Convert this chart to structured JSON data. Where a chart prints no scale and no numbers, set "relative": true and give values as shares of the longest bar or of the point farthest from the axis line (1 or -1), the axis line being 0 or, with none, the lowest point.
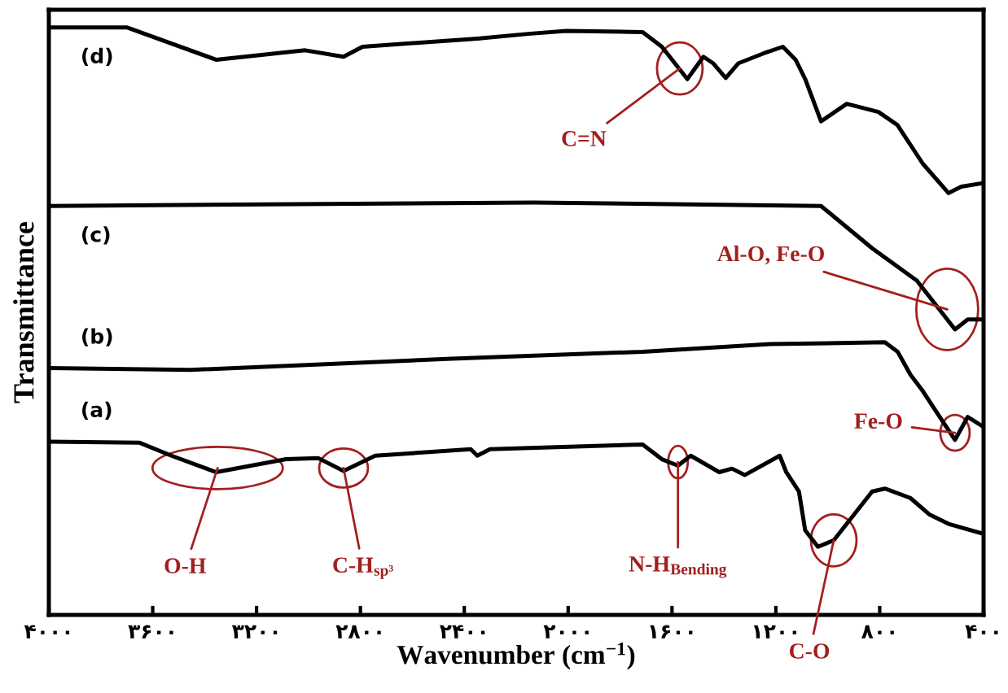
{
  "chart_data": {
    "type": "line",
    "relative": true,
    "ylabel": "Transmittance",
    "xlabel": "Wavenumber (cm$^{−1}$)",
    "xlim": [
      4000,
      400
    ],
    "xticks": [
      {
        "value": 4000,
        "label": "۴۰۰۰"
      },
      {
        "value": 3600,
        "label": "۳۶۰۰"
      },
      {
        "value": 3200,
        "label": "۳۲۰۰"
      },
      {
        "value": 2800,
        "label": "۲۸۰۰"
      },
      {
        "value": 2400,
        "label": "۲۴۰۰"
      },
      {
        "value": 2000,
        "label": "۲۰۰۰"
      },
      {
        "value": 1600,
        "label": "۱۶۰۰"
      },
      {
        "value": 1200,
        "label": "۱۲۰۰"
      },
      {
        "value": 800,
        "label": "۸۰۰"
      },
      {
        "value": 400,
        "label": "۴۰۰"
      }
    ],
    "tick_labels": "x",
    "grid": false,
    "legend": false,
    "marker": "none",
    "line_style": "solid",
    "series": [
      {
        "name": "(d)",
        "color": "#000000",
        "x": [
          4000,
          3700,
          3356,
          3013,
          2865,
          2792,
          2350,
          2154,
          2007,
          1713,
          1639,
          1541,
          1479,
          1442,
          1393,
          1344,
          1246,
          1173,
          1124,
          1087,
          1026,
          927,
          805,
          732,
          634,
          535,
          486,
          400
        ],
        "values": [
          1.0,
          1.0,
          0.945,
          0.961,
          0.95,
          0.967,
          0.981,
          0.989,
          0.994,
          0.992,
          0.967,
          0.912,
          0.95,
          0.939,
          0.914,
          0.939,
          0.956,
          0.967,
          0.945,
          0.912,
          0.84,
          0.87,
          0.856,
          0.834,
          0.768,
          0.718,
          0.729,
          0.735
        ]
      },
      {
        "name": "(c)",
        "color": "#000000",
        "x": [
          4000,
          2130,
          1026,
          952,
          829,
          657,
          510,
          461,
          400
        ],
        "values": [
          0.696,
          0.702,
          0.696,
          0.669,
          0.624,
          0.569,
          0.486,
          0.503,
          0.503
        ]
      },
      {
        "name": "(b)",
        "color": "#000000",
        "x": [
          4000,
          3454,
          2448,
          1713,
          1222,
          780,
          731,
          682,
          634,
          560,
          510,
          461,
          400
        ],
        "values": [
          0.42,
          0.417,
          0.436,
          0.448,
          0.461,
          0.464,
          0.448,
          0.409,
          0.381,
          0.331,
          0.298,
          0.337,
          0.32
        ]
      },
      {
        "name": "(a)",
        "color": "#000000",
        "x": [
          4000,
          3650,
          3528,
          3356,
          3086,
          2963,
          2865,
          2743,
          2375,
          2350,
          2301,
          1713,
          1639,
          1577,
          1528,
          1418,
          1369,
          1320,
          1185,
          1160,
          1111,
          1087,
          1038,
          977,
          927,
          829,
          780,
          682,
          609,
          535,
          400
        ],
        "values": [
          0.295,
          0.293,
          0.271,
          0.243,
          0.265,
          0.267,
          0.245,
          0.271,
          0.282,
          0.271,
          0.282,
          0.29,
          0.265,
          0.254,
          0.271,
          0.243,
          0.249,
          0.238,
          0.271,
          0.243,
          0.21,
          0.144,
          0.116,
          0.127,
          0.155,
          0.21,
          0.215,
          0.199,
          0.171,
          0.155,
          0.138
        ]
      }
    ],
    "annotations": [
      {
        "text": "O-H",
        "x": 3350,
        "y": 0.25
      },
      {
        "text": "C-H$_{sp³}$",
        "x": 2865,
        "y": 0.25
      },
      {
        "text": "N-H$_{Bending}$",
        "x": 1577,
        "y": 0.26
      },
      {
        "text": "C-O",
        "x": 977,
        "y": 0.127
      },
      {
        "text": "Fe-O",
        "x": 510,
        "y": 0.31
      },
      {
        "text": "Al-O, Fe-O",
        "x": 540,
        "y": 0.52
      },
      {
        "text": "C=N",
        "x": 1570,
        "y": 0.93
      }
    ]
  }
}
